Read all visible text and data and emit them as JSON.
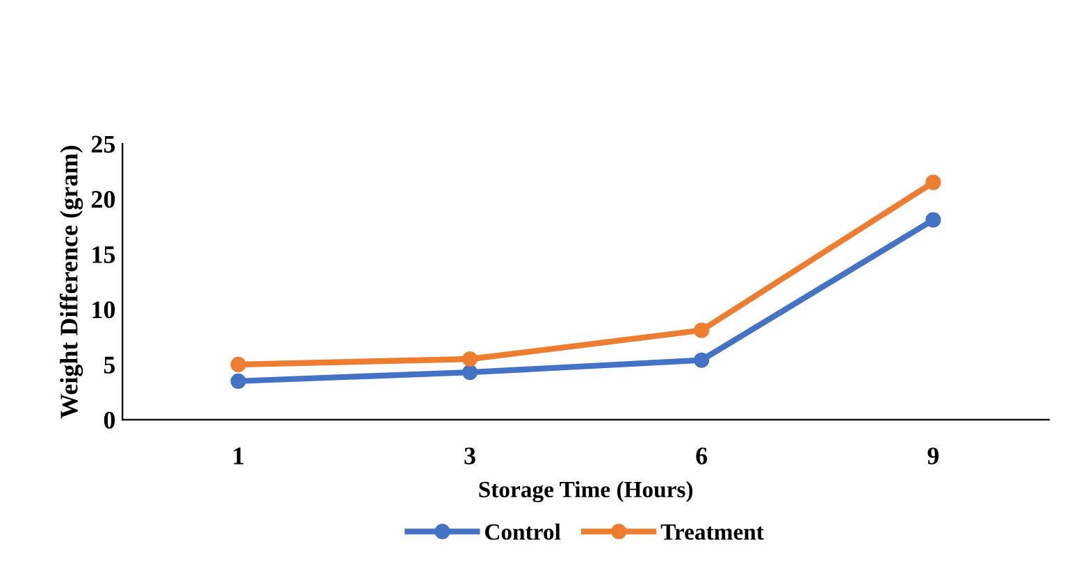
{
  "chart_data": {
    "type": "line",
    "xlabel": "Storage Time (Hours)",
    "ylabel": "Weight Difference (gram)",
    "categories": [
      "1",
      "3",
      "6",
      "9"
    ],
    "series": [
      {
        "name": "Control",
        "color": "#4472c4",
        "values": [
          3.5,
          4.3,
          5.4,
          18.1
        ]
      },
      {
        "name": "Treatment",
        "color": "#ed7d31",
        "values": [
          5.0,
          5.5,
          8.1,
          21.5
        ]
      }
    ],
    "ylim": [
      0,
      25
    ],
    "yticks": [
      0,
      5,
      10,
      15,
      20,
      25
    ],
    "grid": false,
    "legend": "bottom",
    "marker": "circle",
    "line_style": "solid"
  }
}
